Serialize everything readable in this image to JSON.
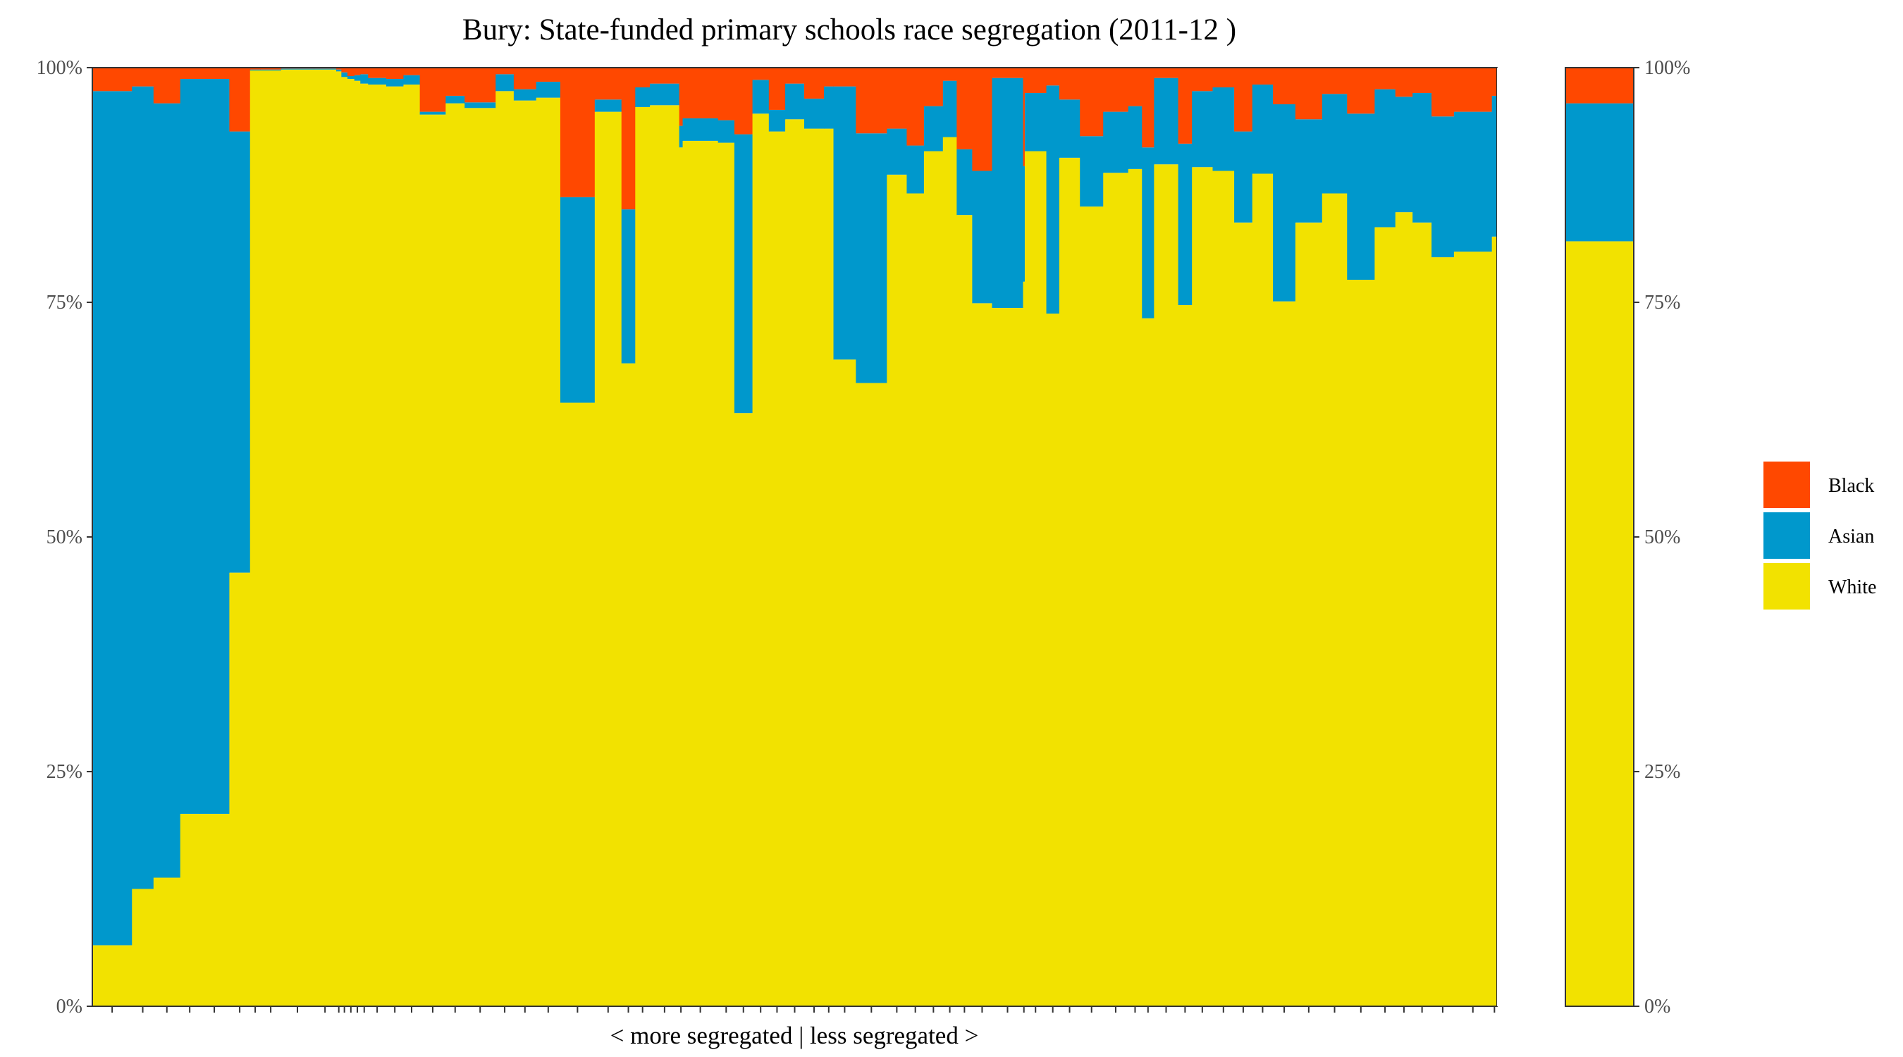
{
  "chart_data": {
    "type": "bar",
    "title": "Bury: State-funded primary schools race segregation (2011-12 )",
    "xlabel": "< more segregated | less segregated >",
    "ylabel": "",
    "ylim": [
      0,
      100
    ],
    "y_ticks": [
      "0%",
      "25%",
      "50%",
      "75%",
      "100%"
    ],
    "stacked": true,
    "legend_position": "right",
    "series_order": [
      "White",
      "Asian",
      "Black"
    ],
    "colors": {
      "White": "#F2E200",
      "Asian": "#0098CC",
      "Black": "#FF4800"
    },
    "legend": [
      {
        "name": "Black",
        "color": "#FF4800"
      },
      {
        "name": "Asian",
        "color": "#0098CC"
      },
      {
        "name": "White",
        "color": "#F2E200"
      }
    ],
    "schools": [
      {
        "w": 4.6,
        "white": 6.5,
        "asian": 91.0,
        "black": 2.5
      },
      {
        "w": 2.5,
        "white": 12.5,
        "asian": 85.5,
        "black": 2.0
      },
      {
        "w": 3.1,
        "white": 13.7,
        "asian": 82.5,
        "black": 3.8
      },
      {
        "w": 2.2,
        "white": 20.5,
        "asian": 78.3,
        "black": 1.2
      },
      {
        "w": 3.5,
        "white": 20.5,
        "asian": 78.3,
        "black": 1.2
      },
      {
        "w": 2.4,
        "white": 46.2,
        "asian": 47.0,
        "black": 6.8
      },
      {
        "w": 1.2,
        "white": 99.7,
        "asian": 0.1,
        "black": 0.2
      },
      {
        "w": 2.4,
        "white": 99.7,
        "asian": 0.1,
        "black": 0.2
      },
      {
        "w": 3.8,
        "white": 99.8,
        "asian": 0.1,
        "black": 0.1
      },
      {
        "w": 2.6,
        "white": 99.8,
        "asian": 0.1,
        "black": 0.1
      },
      {
        "w": 0.6,
        "white": 99.6,
        "asian": 0.2,
        "black": 0.2
      },
      {
        "w": 0.7,
        "white": 99.0,
        "asian": 0.5,
        "black": 0.5
      },
      {
        "w": 0.8,
        "white": 98.8,
        "asian": 0.3,
        "black": 0.9
      },
      {
        "w": 0.7,
        "white": 98.6,
        "asian": 0.6,
        "black": 0.8
      },
      {
        "w": 0.9,
        "white": 98.3,
        "asian": 1.0,
        "black": 0.7
      },
      {
        "w": 2.1,
        "white": 98.2,
        "asian": 0.7,
        "black": 1.1
      },
      {
        "w": 2.0,
        "white": 98.0,
        "asian": 0.8,
        "black": 1.2
      },
      {
        "w": 1.9,
        "white": 98.2,
        "asian": 1.0,
        "black": 0.8
      },
      {
        "w": 3.0,
        "white": 95.0,
        "asian": 0.3,
        "black": 4.7
      },
      {
        "w": 2.2,
        "white": 96.2,
        "asian": 0.8,
        "black": 3.0
      },
      {
        "w": 3.6,
        "white": 95.7,
        "asian": 0.6,
        "black": 3.7
      },
      {
        "w": 2.1,
        "white": 97.5,
        "asian": 1.8,
        "black": 0.7
      },
      {
        "w": 2.6,
        "white": 96.5,
        "asian": 1.2,
        "black": 2.3
      },
      {
        "w": 2.8,
        "white": 96.8,
        "asian": 1.7,
        "black": 1.5
      },
      {
        "w": 4.0,
        "white": 64.3,
        "asian": 21.9,
        "black": 13.8
      },
      {
        "w": 3.1,
        "white": 95.3,
        "asian": 1.3,
        "black": 3.4
      },
      {
        "w": 1.6,
        "white": 68.5,
        "asian": 16.4,
        "black": 15.1
      },
      {
        "w": 1.7,
        "white": 95.8,
        "asian": 2.1,
        "black": 2.1
      },
      {
        "w": 3.4,
        "white": 96.0,
        "asian": 2.3,
        "black": 1.7
      },
      {
        "w": 0.4,
        "white": 91.5,
        "asian": 2.3,
        "black": 6.2
      },
      {
        "w": 4.1,
        "white": 92.2,
        "asian": 2.4,
        "black": 5.4
      },
      {
        "w": 1.9,
        "white": 92.0,
        "asian": 2.4,
        "black": 5.6
      },
      {
        "w": 2.1,
        "white": 63.2,
        "asian": 29.7,
        "black": 7.1
      },
      {
        "w": 1.9,
        "white": 95.1,
        "asian": 3.6,
        "black": 1.3
      },
      {
        "w": 1.9,
        "white": 93.2,
        "asian": 2.3,
        "black": 4.5
      },
      {
        "w": 2.2,
        "white": 94.5,
        "asian": 3.8,
        "black": 1.7
      },
      {
        "w": 2.3,
        "white": 93.5,
        "asian": 3.2,
        "black": 3.3
      },
      {
        "w": 1.1,
        "white": 93.5,
        "asian": 4.5,
        "black": 2.0
      },
      {
        "w": 2.6,
        "white": 68.9,
        "asian": 29.1,
        "black": 2.0
      },
      {
        "w": 3.6,
        "white": 66.4,
        "asian": 26.6,
        "black": 7.0
      },
      {
        "w": 2.3,
        "white": 88.6,
        "asian": 4.9,
        "black": 6.5
      },
      {
        "w": 2.0,
        "white": 86.6,
        "asian": 5.1,
        "black": 8.3
      },
      {
        "w": 2.2,
        "white": 91.1,
        "asian": 4.8,
        "black": 4.1
      },
      {
        "w": 1.6,
        "white": 92.6,
        "asian": 6.0,
        "black": 1.4
      },
      {
        "w": 1.8,
        "white": 84.3,
        "asian": 7.0,
        "black": 8.7
      },
      {
        "w": 2.3,
        "white": 74.9,
        "asian": 14.1,
        "black": 11.0
      },
      {
        "w": 3.6,
        "white": 74.4,
        "asian": 24.5,
        "black": 1.1
      },
      {
        "w": 0.2,
        "white": 77.2,
        "asian": 12.3,
        "black": 10.5
      },
      {
        "w": 2.5,
        "white": 91.1,
        "asian": 6.2,
        "black": 2.7
      },
      {
        "w": 1.5,
        "white": 73.8,
        "asian": 24.3,
        "black": 1.9
      },
      {
        "w": 2.4,
        "white": 90.4,
        "asian": 6.2,
        "black": 3.4
      },
      {
        "w": 2.7,
        "white": 85.2,
        "asian": 7.5,
        "black": 7.3
      },
      {
        "w": 2.9,
        "white": 88.8,
        "asian": 6.5,
        "black": 4.7
      },
      {
        "w": 1.6,
        "white": 89.2,
        "asian": 6.7,
        "black": 4.1
      },
      {
        "w": 1.4,
        "white": 73.3,
        "asian": 18.2,
        "black": 8.5
      },
      {
        "w": 2.8,
        "white": 89.7,
        "asian": 9.2,
        "black": 1.1
      },
      {
        "w": 1.6,
        "white": 74.7,
        "asian": 17.2,
        "black": 8.1
      },
      {
        "w": 2.4,
        "white": 89.4,
        "asian": 8.1,
        "black": 2.5
      },
      {
        "w": 2.5,
        "white": 89.0,
        "asian": 8.9,
        "black": 2.1
      },
      {
        "w": 2.1,
        "white": 83.5,
        "asian": 9.7,
        "black": 6.8
      },
      {
        "w": 2.4,
        "white": 88.7,
        "asian": 9.5,
        "black": 1.8
      },
      {
        "w": 2.6,
        "white": 75.1,
        "asian": 21.0,
        "black": 3.9
      },
      {
        "w": 3.1,
        "white": 83.5,
        "asian": 11.0,
        "black": 5.5
      },
      {
        "w": 2.9,
        "white": 86.6,
        "asian": 10.6,
        "black": 2.8
      },
      {
        "w": 3.2,
        "white": 77.4,
        "asian": 17.7,
        "black": 4.9
      },
      {
        "w": 2.4,
        "white": 83.0,
        "asian": 14.7,
        "black": 2.3
      },
      {
        "w": 2.0,
        "white": 84.6,
        "asian": 12.3,
        "black": 3.1
      },
      {
        "w": 2.2,
        "white": 83.5,
        "asian": 13.8,
        "black": 2.7
      },
      {
        "w": 2.6,
        "white": 79.8,
        "asian": 15.0,
        "black": 5.2
      },
      {
        "w": 4.4,
        "white": 80.4,
        "asian": 14.9,
        "black": 4.7
      },
      {
        "w": 0.6,
        "white": 82.0,
        "asian": 15.0,
        "black": 3.0
      }
    ],
    "overall": {
      "white": 81.5,
      "asian": 14.7,
      "black": 3.8
    }
  }
}
